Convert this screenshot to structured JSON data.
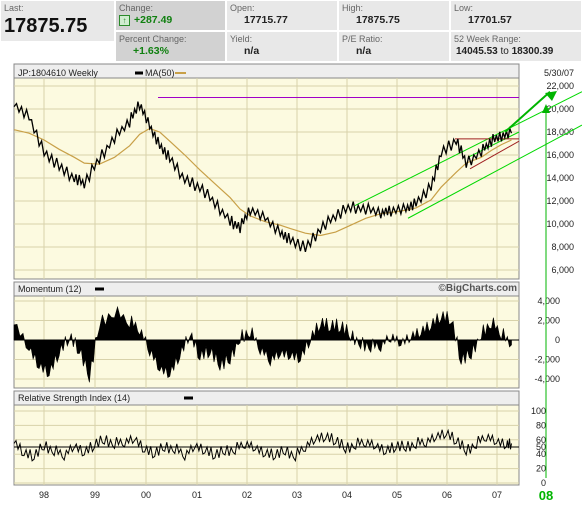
{
  "quote": {
    "last_label": "Last:",
    "last_value": "17875.75",
    "change_label": "Change:",
    "change_value": "+287.49",
    "pct_label": "Percent Change:",
    "pct_value": "+1.63%",
    "open_label": "Open:",
    "open_value": "17715.77",
    "yield_label": "Yield:",
    "yield_value": "n/a",
    "high_label": "High:",
    "high_value": "17875.75",
    "pe_label": "P/E Ratio:",
    "pe_value": "n/a",
    "low_label": "Low:",
    "low_value": "17701.57",
    "range_label": "52 Week Range:",
    "range_low": "14045.53",
    "range_to": "to",
    "range_high": "18300.39"
  },
  "colors": {
    "panel_bg": "#fcfae0",
    "grid": "#d8d2aa",
    "price_line": "#000000",
    "ma_line": "#c8a048",
    "trend_green": "#00d800",
    "resistance_purple": "#a000c8",
    "channel_red": "#a02020",
    "annotation_green": "#00b400"
  },
  "chart_data": {
    "type": "line",
    "symbol_label": "JP:1804610",
    "period_label": "Weekly",
    "ma_label": "MA(50)",
    "date_label": "5/30/07",
    "watermark": "©BigCharts.com",
    "annotation": "08",
    "x_tick_labels": [
      "98",
      "99",
      "00",
      "01",
      "02",
      "03",
      "04",
      "05",
      "06",
      "07"
    ],
    "price": {
      "y_ticks": [
        "22,000",
        "20,000",
        "18,000",
        "16,000",
        "14,000",
        "12,000",
        "10,000",
        "8,000",
        "6,000"
      ],
      "ylim": [
        6000,
        22000
      ],
      "x": [
        1997.5,
        1997.8,
        1998.1,
        1998.4,
        1998.7,
        1998.9,
        1999.2,
        1999.5,
        1999.8,
        2000.0,
        2000.2,
        2000.4,
        2000.6,
        2000.9,
        2001.2,
        2001.5,
        2001.8,
        2002.0,
        2002.2,
        2002.5,
        2002.8,
        2003.0,
        2003.3,
        2003.6,
        2003.9,
        2004.2,
        2004.5,
        2004.8,
        2005.0,
        2005.3,
        2005.5,
        2005.8,
        2006.0,
        2006.3,
        2006.5,
        2006.8,
        2007.0,
        2007.2,
        2007.4
      ],
      "values": [
        20400,
        19300,
        16200,
        15000,
        14000,
        13500,
        15700,
        17500,
        18900,
        20500,
        18500,
        16800,
        15700,
        13900,
        13200,
        11800,
        10300,
        9700,
        11300,
        10500,
        9200,
        8600,
        7900,
        9600,
        10700,
        11500,
        11300,
        11000,
        11200,
        11300,
        11800,
        13200,
        16200,
        17300,
        15300,
        16300,
        17200,
        17700,
        17900
      ],
      "ma50": [
        18200,
        17900,
        17300,
        16500,
        15800,
        15300,
        15200,
        15800,
        16800,
        17800,
        18300,
        18000,
        17200,
        16000,
        14700,
        13500,
        12300,
        11300,
        10700,
        10200,
        9900,
        9600,
        9200,
        9000,
        9300,
        9900,
        10500,
        10900,
        11000,
        11200,
        11400,
        12100,
        13200,
        14500,
        15300,
        15800,
        16400,
        16900,
        17300
      ],
      "resistance_level": 21000
    },
    "momentum": {
      "label": "Momentum",
      "period": "(12)",
      "y_ticks": [
        "4,000",
        "2,000",
        "0",
        "-2,000",
        "-4,000"
      ],
      "ylim": [
        -4000,
        4000
      ],
      "x": [
        1997.5,
        1997.8,
        1998.0,
        1998.2,
        1998.4,
        1998.6,
        1998.8,
        1999.0,
        1999.2,
        1999.5,
        1999.8,
        2000.0,
        2000.2,
        2000.4,
        2000.6,
        2000.8,
        2001.0,
        2001.2,
        2001.4,
        2001.6,
        2001.8,
        2002.0,
        2002.2,
        2002.4,
        2002.6,
        2002.8,
        2003.0,
        2003.2,
        2003.4,
        2003.6,
        2003.8,
        2004.0,
        2004.2,
        2004.4,
        2004.6,
        2004.8,
        2005.0,
        2005.2,
        2005.4,
        2005.6,
        2005.8,
        2006.0,
        2006.2,
        2006.4,
        2006.6,
        2006.8,
        2007.0,
        2007.2,
        2007.4
      ],
      "values": [
        1800,
        -800,
        -2600,
        -3300,
        -1200,
        400,
        -900,
        -3800,
        1700,
        2900,
        1900,
        1200,
        -900,
        -2900,
        -3400,
        -1500,
        700,
        -1600,
        -1000,
        -2600,
        -1900,
        300,
        900,
        -800,
        -1900,
        -1300,
        -1500,
        -1800,
        200,
        1800,
        1500,
        1500,
        500,
        -300,
        -600,
        -500,
        500,
        -300,
        400,
        900,
        1600,
        2500,
        2200,
        -2000,
        -1400,
        700,
        1800,
        700,
        -500
      ]
    },
    "rsi": {
      "label": "Relative Strength Index",
      "period": "(14)",
      "y_ticks": [
        "100",
        "80",
        "60",
        "50",
        "40",
        "20",
        "0"
      ],
      "ylim": [
        0,
        100
      ],
      "reference_level": 50,
      "x": [
        1997.5,
        1997.7,
        1997.9,
        1998.1,
        1998.3,
        1998.5,
        1998.7,
        1998.9,
        1999.1,
        1999.3,
        1999.5,
        1999.7,
        1999.9,
        2000.1,
        2000.3,
        2000.5,
        2000.7,
        2000.9,
        2001.1,
        2001.3,
        2001.5,
        2001.7,
        2001.9,
        2002.1,
        2002.3,
        2002.5,
        2002.7,
        2002.9,
        2003.1,
        2003.3,
        2003.5,
        2003.7,
        2003.9,
        2004.1,
        2004.3,
        2004.5,
        2004.7,
        2004.9,
        2005.1,
        2005.3,
        2005.5,
        2005.7,
        2005.9,
        2006.1,
        2006.3,
        2006.5,
        2006.7,
        2006.9,
        2007.1,
        2007.3,
        2007.4
      ],
      "values": [
        58,
        42,
        38,
        52,
        45,
        40,
        52,
        43,
        54,
        60,
        55,
        58,
        62,
        47,
        42,
        50,
        48,
        40,
        52,
        46,
        40,
        45,
        47,
        56,
        49,
        42,
        40,
        45,
        38,
        52,
        62,
        65,
        60,
        48,
        54,
        58,
        52,
        45,
        52,
        50,
        55,
        58,
        65,
        70,
        60,
        45,
        55,
        66,
        58,
        54,
        55
      ]
    },
    "annotations": {
      "target_level": 21000
    }
  }
}
